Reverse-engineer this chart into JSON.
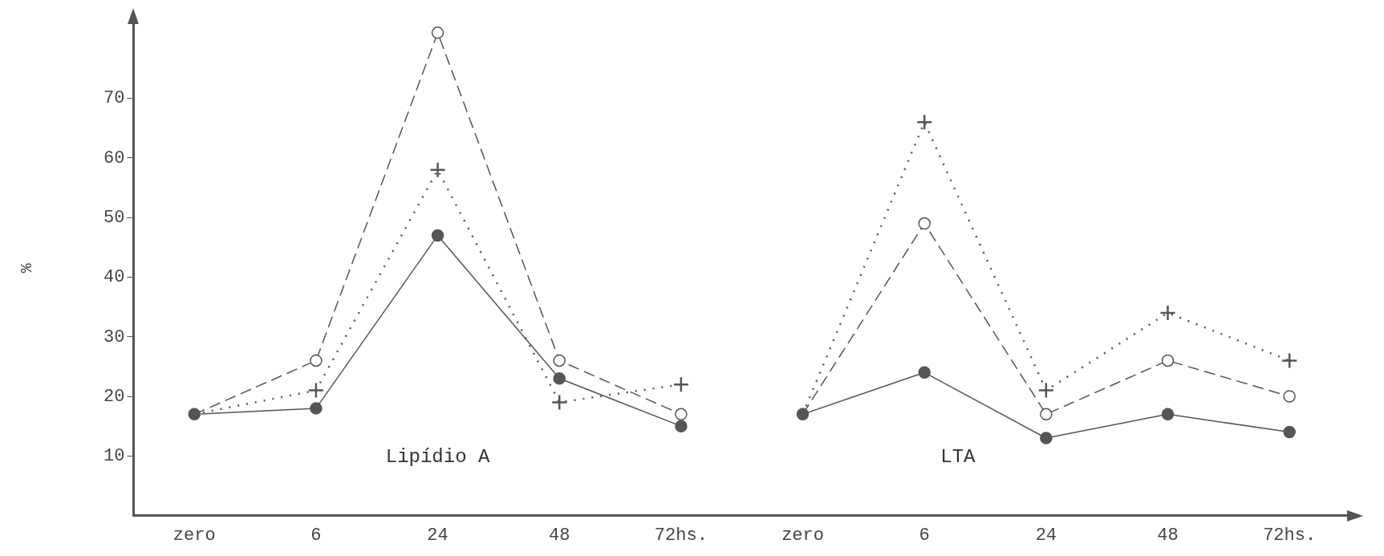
{
  "chart_data": {
    "type": "line",
    "ylabel": "%",
    "categories": [
      "zero",
      "6",
      "24",
      "48",
      "72hs.",
      "zero",
      "6",
      "24",
      "48",
      "72hs."
    ],
    "series": [
      {
        "color": "#555555",
        "marker": "circle",
        "line_style": "solid",
        "values": [
          17,
          18,
          47,
          23,
          15,
          null,
          null,
          null,
          null,
          null
        ]
      },
      {
        "color": "#555555",
        "marker": "circle",
        "line_style": "dashed",
        "values": [
          17,
          26,
          81,
          26,
          17,
          null,
          null,
          null,
          null,
          null
        ]
      },
      {
        "color": "#555555",
        "marker": "cross",
        "line_style": "dotted",
        "values": [
          17,
          21,
          58,
          19,
          22,
          null,
          null,
          null,
          null,
          null
        ]
      },
      {
        "color": "#555555",
        "marker": "circle",
        "line_style": "solid",
        "values": [
          null,
          null,
          null,
          null,
          null,
          17,
          24,
          13,
          17,
          14
        ]
      },
      {
        "color": "#555555",
        "marker": "circle",
        "line_style": "dashed",
        "values": [
          null,
          null,
          null,
          null,
          null,
          17,
          49,
          17,
          26,
          20
        ]
      },
      {
        "color": "#555555",
        "marker": "cross",
        "line_style": "dotted",
        "values": [
          null,
          null,
          null,
          null,
          null,
          17,
          66,
          21,
          34,
          26
        ]
      }
    ],
    "ylim": [
      0,
      83
    ],
    "yticks": [
      10,
      20,
      30,
      40,
      50,
      60,
      70
    ],
    "grid": false,
    "legend": false,
    "annotations": [
      "Lipídio A",
      "LTA"
    ]
  }
}
